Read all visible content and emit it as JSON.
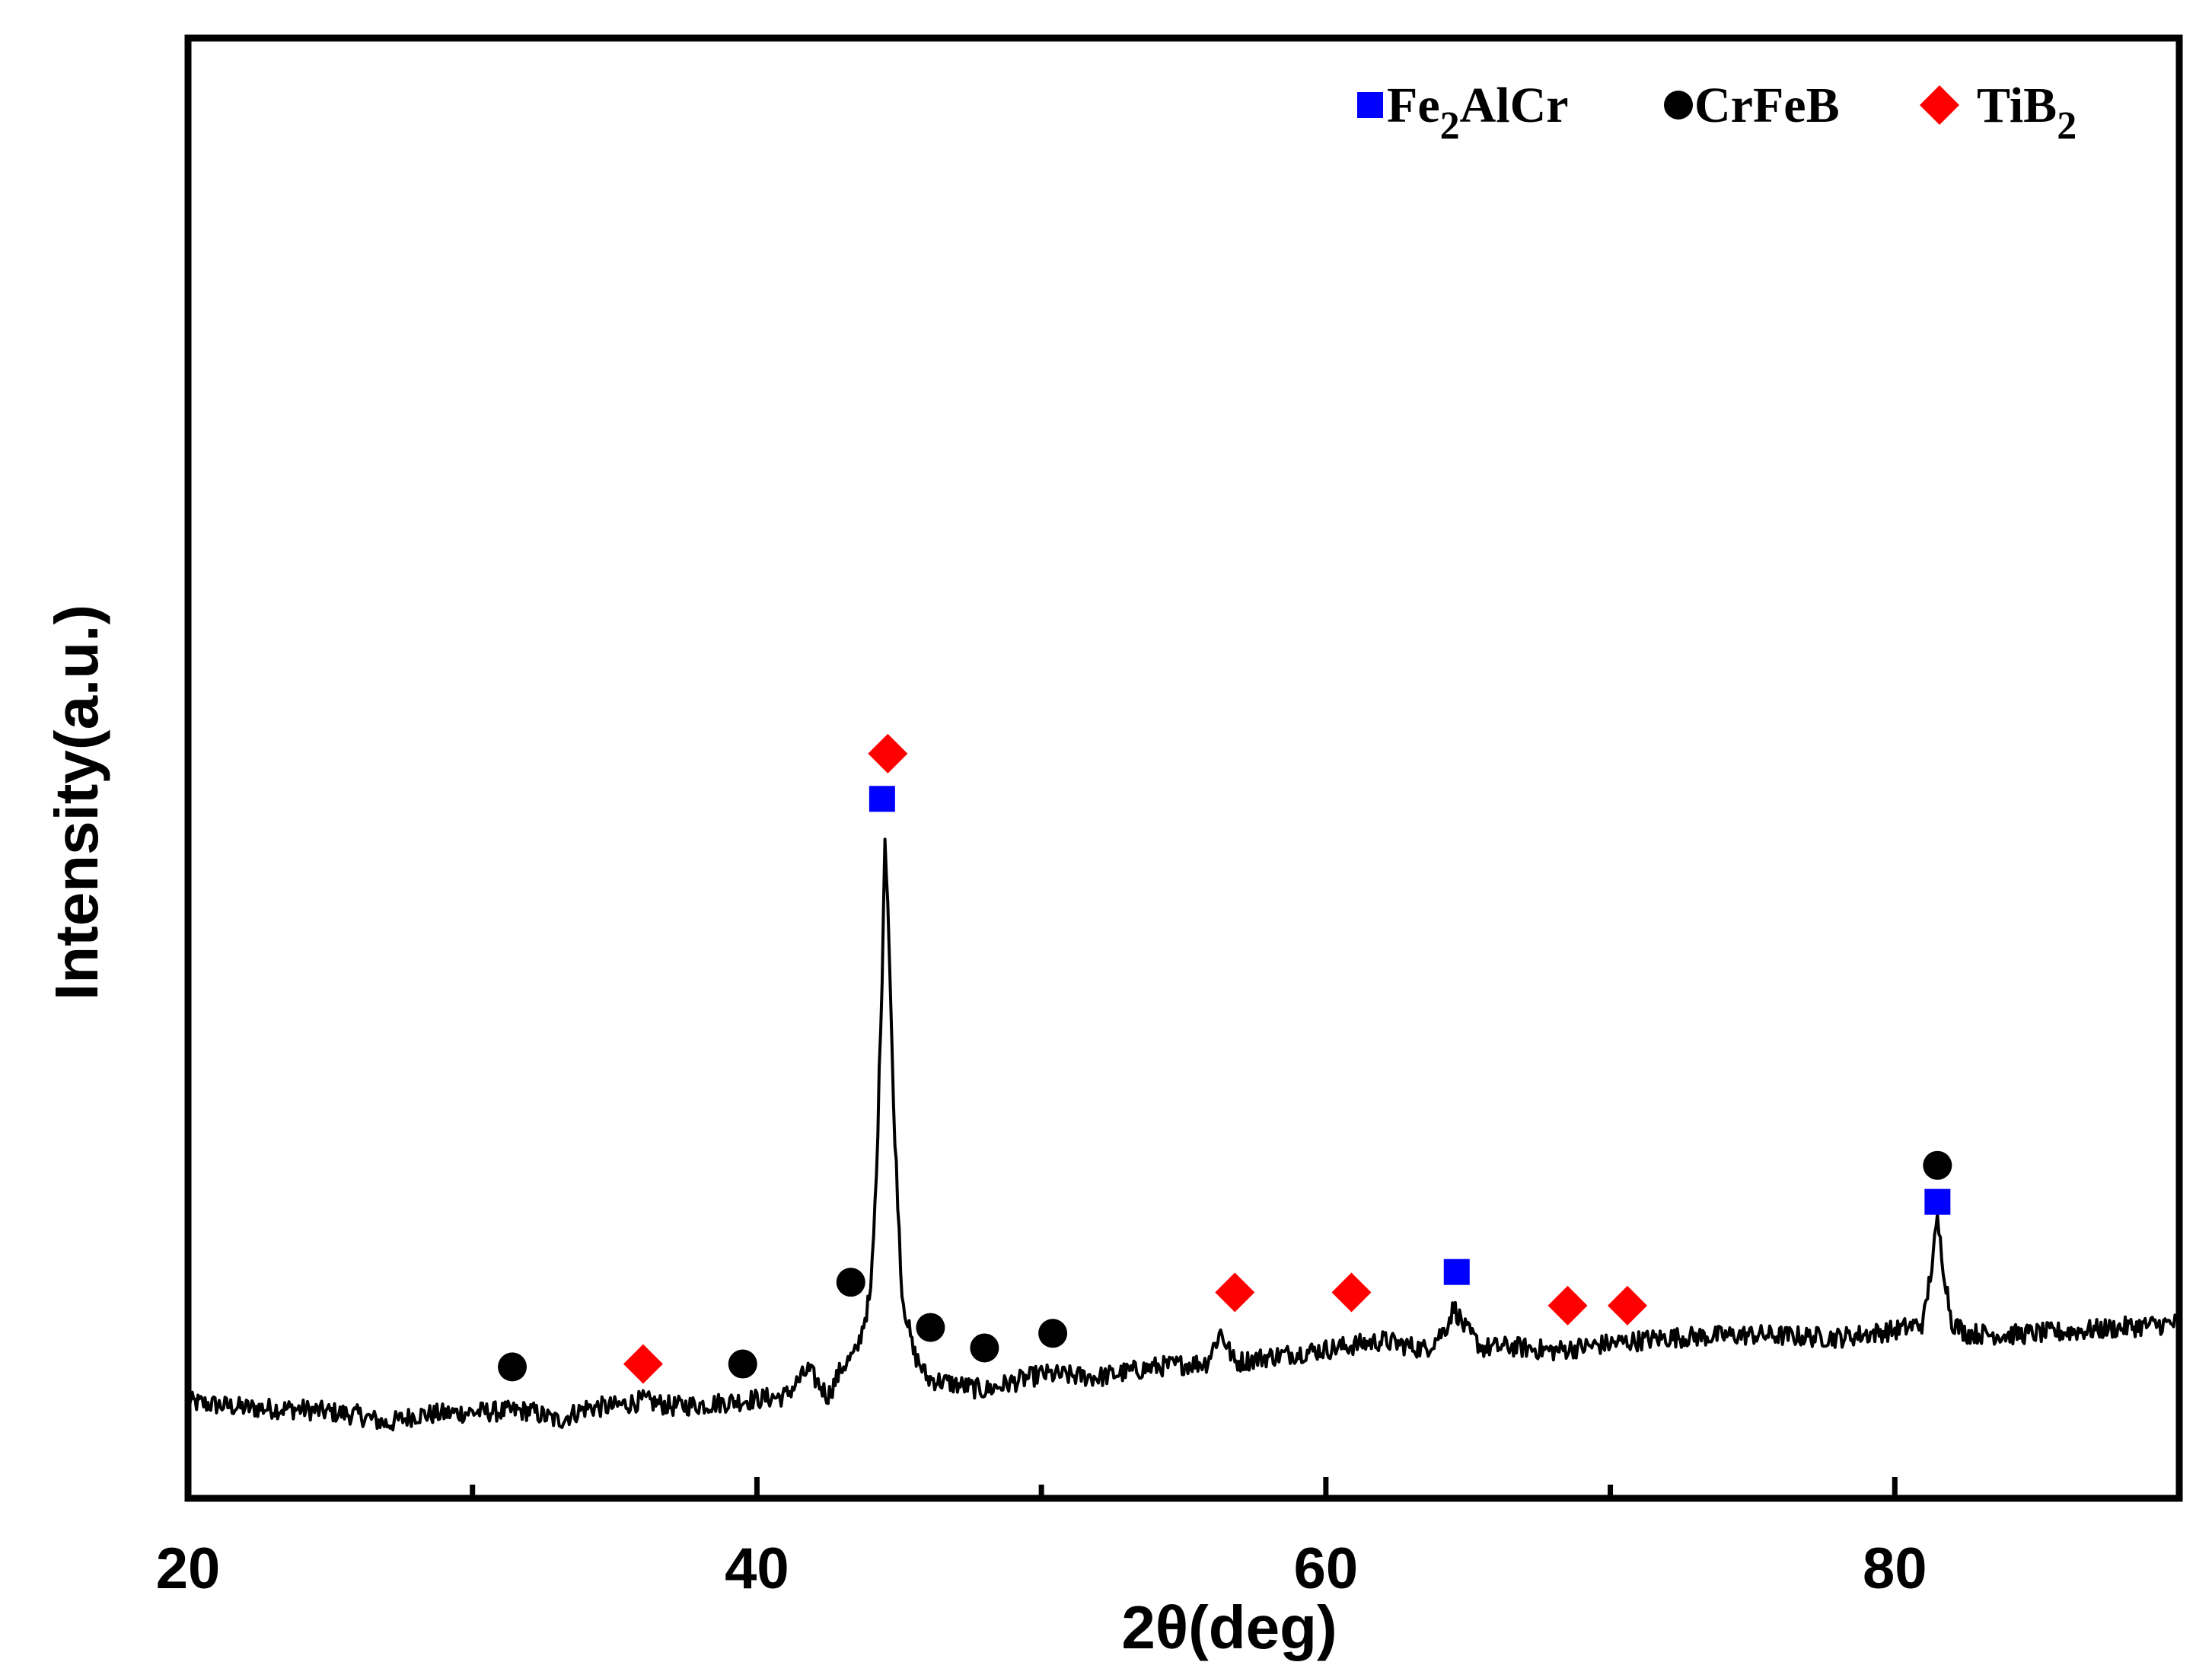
{
  "chart_data": {
    "type": "line",
    "xlabel": "2θ(deg)",
    "ylabel": "Intensity(a.u.)",
    "xlim": [
      20,
      90
    ],
    "ylim": [
      0,
      100
    ],
    "x_ticks": [
      "20",
      "40",
      "60",
      "80"
    ],
    "minor_ticks": [
      30,
      50,
      70
    ],
    "y_ticks_labeled": false,
    "grid": false,
    "legend_position": "top-right",
    "colors": {
      "line": "#000000",
      "Fe2AlCr": "#0000ff",
      "CrFeB": "#000000",
      "TiB2": "#ff0000"
    },
    "legend": [
      {
        "series": "Fe2AlCr",
        "marker": "square",
        "base": "Fe",
        "sub": "2",
        "rest": "AlCr"
      },
      {
        "series": "CrFeB",
        "marker": "circle",
        "base": "CrFeB",
        "sub": "",
        "rest": ""
      },
      {
        "series": "TiB2",
        "marker": "diamond",
        "base": "TiB",
        "sub": "2",
        "rest": ""
      }
    ],
    "series": [
      {
        "x": [
          20,
          22,
          24,
          26,
          27,
          28,
          30,
          32,
          33,
          34,
          35,
          36,
          37,
          38,
          39,
          40,
          41,
          41.8,
          42.5,
          43,
          43.5,
          44,
          44.2,
          44.4,
          44.5,
          44.6,
          44.8,
          45.1,
          45.5,
          46,
          47,
          48,
          50,
          52,
          54,
          55.8,
          56.3,
          56.8,
          58,
          60,
          62,
          63.5,
          64.2,
          64.5,
          64.9,
          65.5,
          66.5,
          68,
          70,
          72,
          75,
          78,
          80,
          81,
          81.3,
          81.5,
          81.7,
          82,
          82.5,
          84,
          86,
          88,
          90
        ],
        "y": [
          6.6,
          6.2,
          6.1,
          5.7,
          5.1,
          5.7,
          5.9,
          6.0,
          5.3,
          6.2,
          6.3,
          6.7,
          6.3,
          6.4,
          6.6,
          6.8,
          7.0,
          8.8,
          7.0,
          9.0,
          10.0,
          14.0,
          22.0,
          36.0,
          45.3,
          41.0,
          27.0,
          14.0,
          10.0,
          8.2,
          7.8,
          7.4,
          8.5,
          8.3,
          9.0,
          9.3,
          11.4,
          9.3,
          9.7,
          10.2,
          10.8,
          10.2,
          11.6,
          13.1,
          11.6,
          10.3,
          10.4,
          10.1,
          10.6,
          11.0,
          11.2,
          11.0,
          11.5,
          12.0,
          16.0,
          19.0,
          16.0,
          12.1,
          11.3,
          11.2,
          11.4,
          11.7,
          12.0
        ]
      }
    ],
    "peak_markers": [
      {
        "series": "CrFeB",
        "x": 31.4,
        "y": 9.0
      },
      {
        "series": "TiB2",
        "x": 36.0,
        "y": 9.2
      },
      {
        "series": "CrFeB",
        "x": 39.5,
        "y": 9.2
      },
      {
        "series": "CrFeB",
        "x": 43.3,
        "y": 14.8
      },
      {
        "series": "Fe2AlCr",
        "x": 44.4,
        "y": 47.9
      },
      {
        "series": "TiB2",
        "x": 44.6,
        "y": 51.0
      },
      {
        "series": "CrFeB",
        "x": 46.1,
        "y": 11.7
      },
      {
        "series": "CrFeB",
        "x": 48.0,
        "y": 10.3
      },
      {
        "series": "CrFeB",
        "x": 50.4,
        "y": 11.3
      },
      {
        "series": "TiB2",
        "x": 56.8,
        "y": 14.1
      },
      {
        "series": "TiB2",
        "x": 60.9,
        "y": 14.1
      },
      {
        "series": "Fe2AlCr",
        "x": 64.6,
        "y": 15.5
      },
      {
        "series": "TiB2",
        "x": 68.5,
        "y": 13.2
      },
      {
        "series": "TiB2",
        "x": 70.6,
        "y": 13.2
      },
      {
        "series": "CrFeB",
        "x": 81.5,
        "y": 22.8
      },
      {
        "series": "Fe2AlCr",
        "x": 81.5,
        "y": 20.3
      }
    ]
  }
}
